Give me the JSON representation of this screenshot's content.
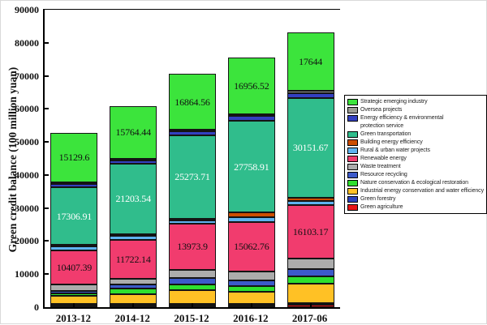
{
  "figure": {
    "ylabel": "Green credit balance (100 million yuan)"
  },
  "chart_data": {
    "type": "bar",
    "stacked": true,
    "grid": false,
    "legend_position": "right",
    "categories": [
      "2013-12",
      "2014-12",
      "2015-12",
      "2016-12",
      "2017-06"
    ],
    "ylim": [
      0,
      90000
    ],
    "ytick_step": 10000,
    "yticks": [
      0,
      10000,
      20000,
      30000,
      40000,
      50000,
      60000,
      70000,
      80000,
      90000
    ],
    "totals_approx": [
      52004,
      60100,
      70112,
      75098,
      82999
    ],
    "series": [
      {
        "name": "Green agriculture",
        "color": "#E81416",
        "values": [
          220,
          160,
          490,
          150,
          620
        ]
      },
      {
        "name": "Green forestry",
        "color": "#2A41BE",
        "values": [
          360,
          420,
          240,
          560,
          280
        ]
      },
      {
        "name": "Industrial energy conservation and water efficiency",
        "color": "#FFC125",
        "values": [
          2350,
          3000,
          4100,
          3600,
          5900
        ]
      },
      {
        "name": "Nature conservation & ecological restoration",
        "color": "#2EE02E",
        "values": [
          840,
          1600,
          1850,
          1780,
          2400
        ]
      },
      {
        "name": "Resource recycling",
        "color": "#3C5ACA",
        "values": [
          840,
          1200,
          1800,
          1780,
          2200
        ]
      },
      {
        "name": "Waste treatment",
        "color": "#ACACAC",
        "values": [
          1760,
          1800,
          2590,
          2600,
          3200
        ]
      },
      {
        "name": "Renewable energy",
        "color": "#F13C6E",
        "values": [
          10407.39,
          11722.14,
          13973.9,
          15062.76,
          16103.17
        ],
        "labels": [
          "10407.39",
          "11722.14",
          "13973.9",
          "15062.76",
          "16103.17"
        ],
        "label_color": "#111111"
      },
      {
        "name": "Rural & urban water projects",
        "color": "#5FB3F0",
        "values": [
          1250,
          1400,
          980,
          1290,
          1300
        ]
      },
      {
        "name": "Building energy efficiency",
        "color": "#CC4E00",
        "values": [
          380,
          400,
          490,
          1460,
          1000
        ]
      },
      {
        "name": "Green transportation",
        "color": "#30BD8C",
        "values": [
          17306.91,
          21203.54,
          25273.71,
          27758.91,
          30151.67
        ],
        "labels": [
          "17306.91",
          "21203.54",
          "25273.71",
          "27758.91",
          "30151.67"
        ],
        "label_color": "#ffffff"
      },
      {
        "name": "Energy efficiency & environmental protection service",
        "color": "#3340C0",
        "values": [
          1000,
          1100,
          1220,
          1500,
          1400
        ]
      },
      {
        "name": "Oversea projects",
        "color": "#9C9C94",
        "values": [
          160,
          330,
          240,
          600,
          800
        ]
      },
      {
        "name": "Strategic emerging industry",
        "color": "#3CE43C",
        "values": [
          15129.6,
          15764.44,
          16864.56,
          16956.52,
          17644
        ],
        "labels": [
          "15129.6",
          "15764.44",
          "16864.56",
          "16956.52",
          "17644"
        ],
        "label_color": "#111111"
      }
    ]
  },
  "legend": {
    "items": [
      {
        "label": "Strategic emerging industry",
        "color": "#3CE43C"
      },
      {
        "label": "Oversea projects",
        "color": "#9C9C94"
      },
      {
        "label": "Energy efficiency & environmental",
        "label_line2": "protection service",
        "color": "#3340C0"
      },
      {
        "label": "Green transportation",
        "color": "#30BD8C"
      },
      {
        "label": "Building energy efficiency",
        "color": "#CC4E00"
      },
      {
        "label": "Rural & urban water projects",
        "color": "#5FB3F0"
      },
      {
        "label": "Renewable energy",
        "color": "#F13C6E"
      },
      {
        "label": "Waste treatment",
        "color": "#ACACAC"
      },
      {
        "label": "Resource recycling",
        "color": "#3C5ACA"
      },
      {
        "label": "Nature conservation & ecological restoration",
        "color": "#2EE02E"
      },
      {
        "label": "Industrial energy conservation and water efficiency",
        "color": "#FFC125"
      },
      {
        "label": "Green forestry",
        "color": "#2A41BE"
      },
      {
        "label": "Green agriculture",
        "color": "#E81416"
      }
    ]
  }
}
